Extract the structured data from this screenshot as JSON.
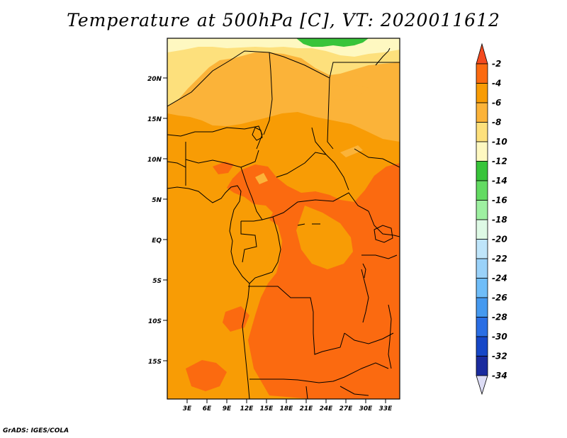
{
  "title": "Temperature at 500hPa [C], VT: 2020011612",
  "credit": "GrADS: IGES/COLA",
  "map": {
    "lat_labels": [
      "20N",
      "15N",
      "10N",
      "5N",
      "EQ",
      "5S",
      "10S",
      "15S"
    ],
    "lon_labels": [
      "3E",
      "6E",
      "9E",
      "12E",
      "15E",
      "18E",
      "21E",
      "24E",
      "27E",
      "30E",
      "33E"
    ]
  },
  "colorbar": {
    "labels": [
      "-2",
      "-4",
      "-6",
      "-8",
      "-10",
      "-12",
      "-14",
      "-16",
      "-18",
      "-20",
      "-22",
      "-24",
      "-26",
      "-28",
      "-30",
      "-32",
      "-34"
    ],
    "colors": [
      "#f44a1f",
      "#fb6a10",
      "#f89c05",
      "#fbb339",
      "#fde07c",
      "#fef8c1",
      "#38c43a",
      "#63db62",
      "#9ef0a1",
      "#def9e5",
      "#bfe5fa",
      "#9ad2f9",
      "#6fbdf8",
      "#4599ef",
      "#2a6ee4",
      "#1647c7",
      "#1a2b9e",
      "#0c1670",
      "#dcdcf5"
    ]
  },
  "palette": {
    "t_m4": "#fb6a10",
    "t_m6": "#f89c05",
    "t_m8": "#fbb339",
    "t_m10": "#fde07c",
    "t_m12": "#fef8c1",
    "t_m14": "#38c43a"
  }
}
